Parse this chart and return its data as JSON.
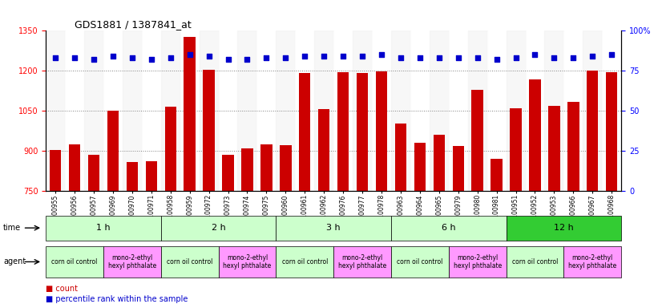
{
  "title": "GDS1881 / 1387841_at",
  "samples": [
    "GSM100955",
    "GSM100956",
    "GSM100957",
    "GSM100969",
    "GSM100970",
    "GSM100971",
    "GSM100958",
    "GSM100959",
    "GSM100972",
    "GSM100973",
    "GSM100974",
    "GSM100975",
    "GSM100960",
    "GSM100961",
    "GSM100962",
    "GSM100976",
    "GSM100977",
    "GSM100978",
    "GSM100963",
    "GSM100964",
    "GSM100965",
    "GSM100979",
    "GSM100980",
    "GSM100981",
    "GSM100951",
    "GSM100952",
    "GSM100953",
    "GSM100966",
    "GSM100967",
    "GSM100968"
  ],
  "counts": [
    903,
    924,
    884,
    1052,
    858,
    862,
    1065,
    1326,
    1204,
    884,
    908,
    924,
    921,
    1192,
    1057,
    1195,
    1192,
    1197,
    1003,
    930,
    960,
    920,
    1130,
    870,
    1060,
    1168,
    1070,
    1085,
    1200,
    1195
  ],
  "percentiles": [
    83,
    83,
    82,
    84,
    83,
    82,
    83,
    85,
    84,
    82,
    82,
    83,
    83,
    84,
    84,
    84,
    84,
    85,
    83,
    83,
    83,
    83,
    83,
    82,
    83,
    85,
    83,
    83,
    84,
    85
  ],
  "ylim_left": [
    750,
    1350
  ],
  "ylim_right": [
    0,
    100
  ],
  "yticks_left": [
    750,
    900,
    1050,
    1200,
    1350
  ],
  "yticks_right": [
    0,
    25,
    50,
    75,
    100
  ],
  "bar_color": "#cc0000",
  "dot_color": "#0000cc",
  "time_groups": [
    {
      "label": "1 h",
      "start": 0,
      "end": 6,
      "color": "#ccffcc"
    },
    {
      "label": "2 h",
      "start": 6,
      "end": 12,
      "color": "#ccffcc"
    },
    {
      "label": "3 h",
      "start": 12,
      "end": 18,
      "color": "#ccffcc"
    },
    {
      "label": "6 h",
      "start": 18,
      "end": 24,
      "color": "#ccffcc"
    },
    {
      "label": "12 h",
      "start": 24,
      "end": 30,
      "color": "#33cc33"
    }
  ],
  "agent_groups": [
    {
      "label": "corn oil control",
      "start": 0,
      "end": 3,
      "color": "#ccffcc"
    },
    {
      "label": "mono-2-ethyl\nhexyl phthalate",
      "start": 3,
      "end": 6,
      "color": "#ff99ff"
    },
    {
      "label": "corn oil control",
      "start": 6,
      "end": 9,
      "color": "#ccffcc"
    },
    {
      "label": "mono-2-ethyl\nhexyl phthalate",
      "start": 9,
      "end": 12,
      "color": "#ff99ff"
    },
    {
      "label": "corn oil control",
      "start": 12,
      "end": 15,
      "color": "#ccffcc"
    },
    {
      "label": "mono-2-ethyl\nhexyl phthalate",
      "start": 15,
      "end": 18,
      "color": "#ff99ff"
    },
    {
      "label": "corn oil control",
      "start": 18,
      "end": 21,
      "color": "#ccffcc"
    },
    {
      "label": "mono-2-ethyl\nhexyl phthalate",
      "start": 21,
      "end": 24,
      "color": "#ff99ff"
    },
    {
      "label": "corn oil control",
      "start": 24,
      "end": 27,
      "color": "#ccffcc"
    },
    {
      "label": "mono-2-ethyl\nhexyl phthalate",
      "start": 27,
      "end": 30,
      "color": "#ff99ff"
    }
  ],
  "legend_items": [
    {
      "label": "count",
      "color": "#cc0000"
    },
    {
      "label": "percentile rank within the sample",
      "color": "#0000cc"
    }
  ]
}
